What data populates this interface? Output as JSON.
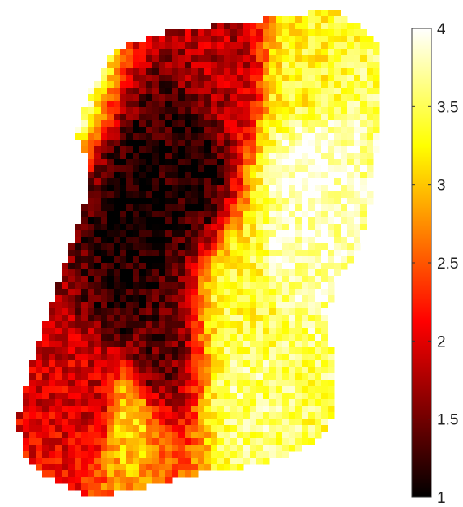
{
  "chart_data": {
    "type": "heatmap",
    "title": "",
    "xlabel": "",
    "ylabel": "",
    "colormap": "hot",
    "clim": [
      1,
      4
    ],
    "colorbar": {
      "ticks": [
        {
          "value": 1,
          "label": "1"
        },
        {
          "value": 1.5,
          "label": "1.5"
        },
        {
          "value": 2,
          "label": "2"
        },
        {
          "value": 2.5,
          "label": "2.5"
        },
        {
          "value": 3,
          "label": "3"
        },
        {
          "value": 3.5,
          "label": "3.5"
        },
        {
          "value": 4,
          "label": "4"
        }
      ],
      "placement": "right"
    },
    "hot_spots": [
      {
        "u": 0.1,
        "v": 0.12,
        "value": 4.0
      },
      {
        "u": 0.8,
        "v": 0.32,
        "value": 4.0
      },
      {
        "u": 0.78,
        "v": 0.46,
        "value": 3.8
      },
      {
        "u": 0.62,
        "v": 0.6,
        "value": 3.4
      },
      {
        "u": 0.64,
        "v": 0.78,
        "value": 3.6
      },
      {
        "u": 0.78,
        "v": 0.15,
        "value": 3.3
      },
      {
        "u": 0.3,
        "v": 0.84,
        "value": 3.1
      }
    ],
    "cold_spots": [
      {
        "u": 0.58,
        "v": 0.12,
        "value": 1.8
      },
      {
        "u": 0.48,
        "v": 0.33,
        "value": 1.1
      },
      {
        "u": 0.34,
        "v": 0.43,
        "value": 1.0
      },
      {
        "u": 0.3,
        "v": 0.58,
        "value": 1.1
      },
      {
        "u": 0.38,
        "v": 0.7,
        "value": 1.4
      },
      {
        "u": 0.22,
        "v": 0.8,
        "value": 1.9
      }
    ]
  }
}
